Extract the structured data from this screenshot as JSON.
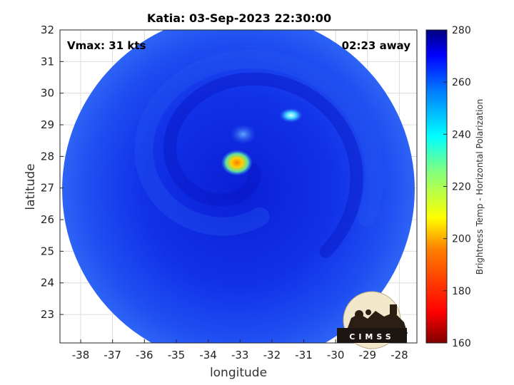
{
  "chart_data": {
    "type": "heatmap",
    "title": "Katia: 03-Sep-2023 22:30:00",
    "xlabel": "longitude",
    "ylabel": "latitude",
    "xlim": [
      -38.65,
      -27.45
    ],
    "ylim": [
      22.1,
      32.0
    ],
    "x_ticks": [
      "-38",
      "-37",
      "-36",
      "-35",
      "-34",
      "-33",
      "-32",
      "-31",
      "-30",
      "-29",
      "-28"
    ],
    "y_ticks": [
      "23",
      "24",
      "25",
      "26",
      "27",
      "28",
      "29",
      "30",
      "31",
      "32"
    ],
    "grid": true,
    "annotations": {
      "vmax": "Vmax: 31 kts",
      "away": "02:23 away"
    },
    "swath": {
      "center_lon": -33.05,
      "center_lat": 26.95,
      "radius_deg": 5.55
    },
    "features": [
      {
        "lon": -33.1,
        "lat": 27.8,
        "value": 195
      },
      {
        "lon": -31.4,
        "lat": 29.3,
        "value": 238
      },
      {
        "lon": -32.9,
        "lat": 28.7,
        "value": 250
      }
    ],
    "colorbar": {
      "label": "Brightness Temp - Horizontal Polarization",
      "min": 160,
      "max": 280,
      "ticks": [
        "160",
        "180",
        "200",
        "220",
        "240",
        "260",
        "280"
      ]
    }
  },
  "logo": {
    "text": "CIMSS"
  }
}
